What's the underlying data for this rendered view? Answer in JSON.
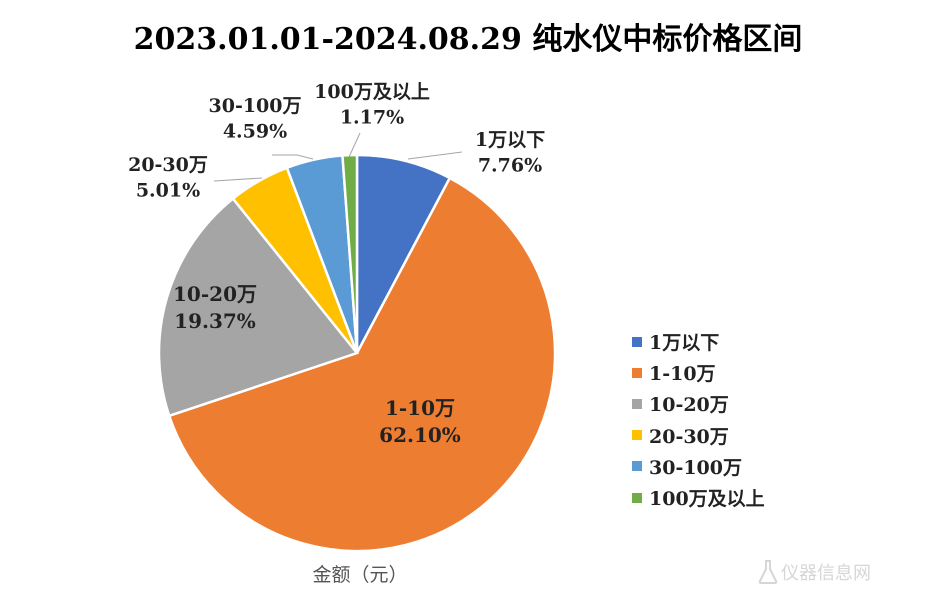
{
  "chart_data": {
    "type": "pie",
    "title": "2023.01.01-2024.08.29 纯水仪中标价格区间",
    "caption": "金额（元）",
    "legend_position": "right",
    "slices": [
      {
        "name": "1万以下",
        "value": 7.76,
        "label": "7.76%",
        "color": "#4472C4"
      },
      {
        "name": "1-10万",
        "value": 62.1,
        "label": "62.10%",
        "color": "#ED7D31"
      },
      {
        "name": "10-20万",
        "value": 19.37,
        "label": "19.37%",
        "color": "#A5A5A5"
      },
      {
        "name": "20-30万",
        "value": 5.01,
        "label": "5.01%",
        "color": "#FFC000"
      },
      {
        "name": "30-100万",
        "value": 4.59,
        "label": "4.59%",
        "color": "#5B9BD5"
      },
      {
        "name": "100万及以上",
        "value": 1.17,
        "label": "1.17%",
        "color": "#70AD47"
      }
    ]
  },
  "watermark": {
    "text": "仪器信息网",
    "icon": "flask-icon"
  }
}
